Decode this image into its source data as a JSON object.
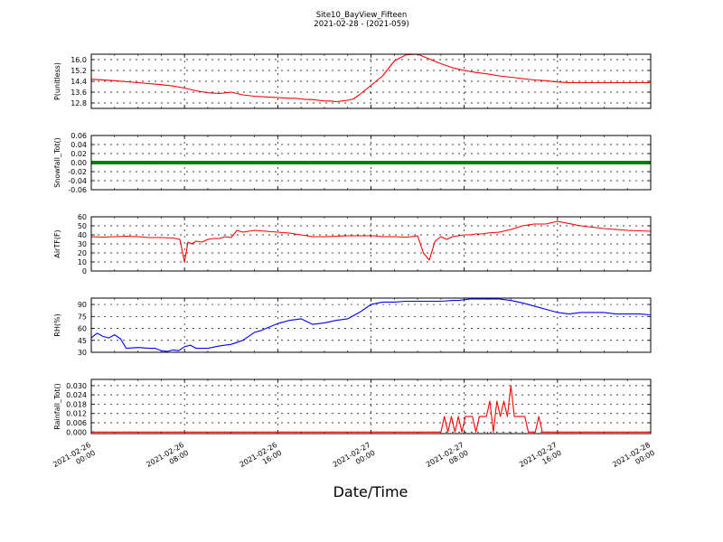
{
  "figure": {
    "title_line1": "Site10_BayView_Fifteen",
    "title_line2": "2021-02-28 - (2021-059)",
    "xlabel": "Date/Time"
  },
  "x_ticks": [
    {
      "line1": "2021-02-26",
      "line2": "00:00"
    },
    {
      "line1": "2021-02-26",
      "line2": "08:00"
    },
    {
      "line1": "2021-02-26",
      "line2": "16:00"
    },
    {
      "line1": "2021-02-27",
      "line2": "00:00"
    },
    {
      "line1": "2021-02-27",
      "line2": "08:00"
    },
    {
      "line1": "2021-02-27",
      "line2": "16:00"
    },
    {
      "line1": "2021-02-28",
      "line2": "00:00"
    }
  ],
  "chart_data": [
    {
      "type": "line",
      "ylabel": "P(unitless)",
      "ylim": [
        12.4,
        16.4
      ],
      "yticks": [
        "12.8",
        "13.6",
        "14.4",
        "15.2",
        "16.0"
      ],
      "grid": true,
      "color": "#ff0000",
      "series": [
        {
          "x": [
            0,
            2,
            4,
            6,
            7,
            8,
            8.5,
            9,
            10,
            11,
            12,
            13,
            14,
            15,
            16,
            17,
            17.5,
            18,
            18.5,
            19,
            19.5,
            20,
            20.5,
            21,
            21.5,
            22,
            22.5,
            23,
            24,
            25,
            26,
            27,
            28,
            29,
            30,
            31,
            32,
            33,
            34,
            35,
            36,
            37,
            38,
            39,
            40,
            41,
            42,
            43,
            44,
            45,
            46,
            47,
            48
          ],
          "y": [
            14.55,
            14.45,
            14.3,
            14.15,
            14.05,
            13.9,
            13.8,
            13.7,
            13.55,
            13.5,
            13.6,
            13.4,
            13.3,
            13.25,
            13.2,
            13.15,
            13.15,
            13.1,
            13.05,
            13.05,
            13.0,
            12.95,
            12.95,
            12.9,
            12.95,
            13.0,
            13.1,
            13.4,
            14.1,
            14.8,
            15.9,
            16.35,
            16.4,
            16.05,
            15.7,
            15.4,
            15.2,
            15.05,
            14.95,
            14.8,
            14.7,
            14.6,
            14.5,
            14.45,
            14.35,
            14.3,
            14.3,
            14.3,
            14.3,
            14.3,
            14.3,
            14.3,
            14.3
          ]
        }
      ]
    },
    {
      "type": "line",
      "ylabel": "Snowfall_Tot()",
      "ylim": [
        -0.06,
        0.06
      ],
      "yticks": [
        "-0.06",
        "-0.04",
        "-0.02",
        "0.00",
        "0.02",
        "0.04",
        "0.06"
      ],
      "grid": true,
      "color": "#008000",
      "series": [
        {
          "x": [
            0,
            48
          ],
          "y": [
            0,
            0
          ]
        }
      ]
    },
    {
      "type": "line",
      "ylabel": "AirTF(F)",
      "ylim": [
        0,
        60
      ],
      "yticks": [
        "0",
        "10",
        "20",
        "30",
        "40",
        "50",
        "60"
      ],
      "grid": true,
      "color": "#ff0000",
      "series": [
        {
          "x": [
            0,
            1,
            2,
            3,
            4,
            5,
            6,
            7,
            7.6,
            7.8,
            8.0,
            8.3,
            8.6,
            9,
            9.5,
            10,
            10.5,
            11,
            11.5,
            12,
            12.5,
            13,
            14,
            15,
            16,
            17,
            18,
            19,
            20,
            21,
            22,
            23,
            23.6,
            23.9,
            24.2,
            24.6,
            25,
            26,
            27,
            27.5,
            28,
            28.5,
            29,
            29.5,
            30,
            30.5,
            31,
            31.5,
            32,
            32.5,
            33,
            33.5,
            34,
            35,
            36,
            37,
            38,
            39,
            40,
            42,
            44,
            46,
            48
          ],
          "y": [
            38,
            37.5,
            38,
            38.5,
            38,
            37,
            37,
            36.5,
            35,
            22,
            10,
            32,
            30,
            33,
            32,
            35,
            36,
            36,
            38,
            37,
            45,
            43,
            45,
            44,
            43,
            42,
            40,
            38,
            38,
            38.5,
            39,
            39,
            39,
            39,
            39,
            38.5,
            38,
            38,
            37.5,
            38,
            39,
            20,
            12,
            33,
            38,
            35,
            38,
            39,
            40,
            40,
            41,
            41,
            42,
            43,
            46,
            50,
            52,
            52,
            55,
            50,
            47,
            45,
            44
          ]
        }
      ]
    },
    {
      "type": "line",
      "ylabel": "RH(%)",
      "ylim": [
        30,
        98
      ],
      "yticks": [
        "30",
        "45",
        "60",
        "75",
        "90"
      ],
      "grid": true,
      "color": "#0000ff",
      "series": [
        {
          "x": [
            0,
            0.5,
            1,
            1.5,
            2,
            2.5,
            3,
            4,
            5,
            5.5,
            6,
            6.5,
            7,
            7.5,
            8,
            8.5,
            9,
            10,
            11,
            12,
            13,
            13.5,
            14,
            14.5,
            15,
            16,
            17,
            18,
            19,
            20,
            21,
            22,
            23,
            23.5,
            24,
            25,
            26,
            27,
            28,
            29,
            30,
            31,
            31.5,
            32,
            32.5,
            33,
            33.5,
            34,
            35,
            36,
            37,
            38,
            39,
            40,
            41,
            42,
            43,
            44,
            45,
            46,
            47,
            48
          ],
          "y": [
            48,
            54,
            50,
            48,
            52,
            47,
            35,
            36,
            35,
            35,
            32,
            31,
            33,
            32,
            37,
            39,
            35,
            35,
            38,
            40,
            45,
            50,
            55,
            57,
            60,
            66,
            70,
            72,
            65,
            67,
            70,
            72,
            80,
            85,
            90,
            93,
            93,
            94,
            94,
            94,
            94,
            95,
            95,
            96,
            97,
            97,
            97,
            97,
            97,
            95,
            92,
            88,
            84,
            80,
            78,
            80,
            80,
            80,
            78,
            78,
            78,
            77
          ]
        }
      ]
    },
    {
      "type": "line",
      "ylabel": "Rainfall_Tot()",
      "ylim": [
        -0.001,
        0.034
      ],
      "yticks": [
        "0.000",
        "0.006",
        "0.012",
        "0.018",
        "0.024",
        "0.030"
      ],
      "grid": true,
      "color": "#ff0000",
      "series": [
        {
          "x": [
            0,
            30,
            30.3,
            30.6,
            30.9,
            31.2,
            31.5,
            31.8,
            32.1,
            32.4,
            32.7,
            33.0,
            33.3,
            33.6,
            33.9,
            34.2,
            34.5,
            34.8,
            35.1,
            35.4,
            35.7,
            36.0,
            36.3,
            36.6,
            36.9,
            37.2,
            37.5,
            37.8,
            38.1,
            38.4,
            38.7,
            48
          ],
          "y": [
            0,
            0,
            0.01,
            0,
            0.01,
            0,
            0.01,
            0,
            0.01,
            0.01,
            0.01,
            0,
            0.01,
            0.01,
            0.01,
            0.02,
            0,
            0.02,
            0.01,
            0.02,
            0.01,
            0.03,
            0.01,
            0.01,
            0.01,
            0.01,
            0,
            0,
            0,
            0.01,
            0,
            0
          ]
        }
      ]
    }
  ]
}
